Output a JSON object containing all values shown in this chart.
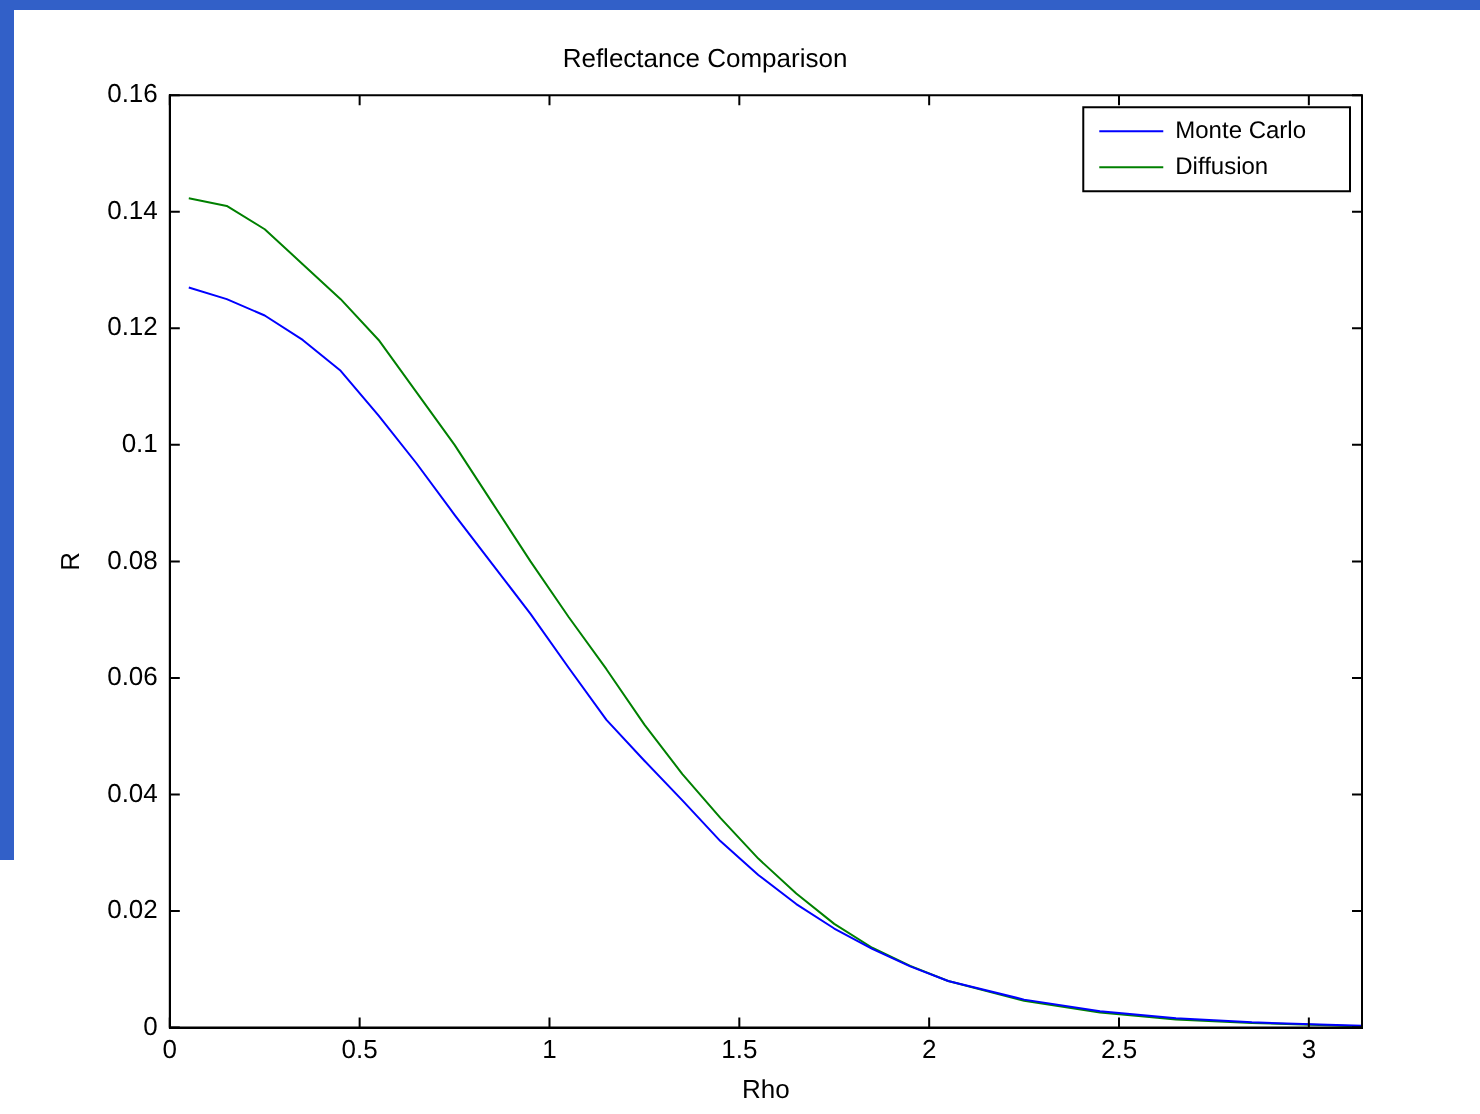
{
  "chart_data": {
    "type": "line",
    "title": "Reflectance Comparison",
    "xlabel": "Rho",
    "ylabel": "R",
    "x": [
      0.05,
      0.15,
      0.25,
      0.35,
      0.45,
      0.55,
      0.65,
      0.75,
      0.85,
      0.95,
      1.05,
      1.15,
      1.25,
      1.35,
      1.45,
      1.55,
      1.65,
      1.75,
      1.85,
      1.95,
      2.05,
      2.25,
      2.45,
      2.65,
      2.85,
      3.05,
      3.14
    ],
    "series": [
      {
        "name": "Monte Carlo",
        "color": "#0000ff",
        "values": [
          0.127,
          0.125,
          0.1222,
          0.118,
          0.1127,
          0.105,
          0.0968,
          0.088,
          0.0795,
          0.071,
          0.0618,
          0.0528,
          0.0458,
          0.039,
          0.032,
          0.0262,
          0.0212,
          0.017,
          0.0135,
          0.0105,
          0.008,
          0.0048,
          0.0028,
          0.0016,
          0.0009,
          0.0005,
          0.0003
        ]
      },
      {
        "name": "Diffusion",
        "color": "#008000",
        "values": [
          0.1423,
          0.141,
          0.137,
          0.131,
          0.125,
          0.118,
          0.109,
          0.1,
          0.09,
          0.08,
          0.0705,
          0.0615,
          0.052,
          0.0435,
          0.036,
          0.029,
          0.023,
          0.0178,
          0.0137,
          0.0106,
          0.008,
          0.0046,
          0.0026,
          0.0014,
          0.0008,
          0.0004,
          0.0002
        ]
      }
    ],
    "xlim": [
      0,
      3.14
    ],
    "xticks": [
      0,
      0.5,
      1,
      1.5,
      2,
      2.5,
      3
    ],
    "ylim": [
      0,
      0.16
    ],
    "yticks": [
      0,
      0.02,
      0.04,
      0.06,
      0.08,
      0.1,
      0.12,
      0.14,
      0.16
    ],
    "grid": false,
    "legend": "top right",
    "marker": "none",
    "line_style": "solid"
  }
}
